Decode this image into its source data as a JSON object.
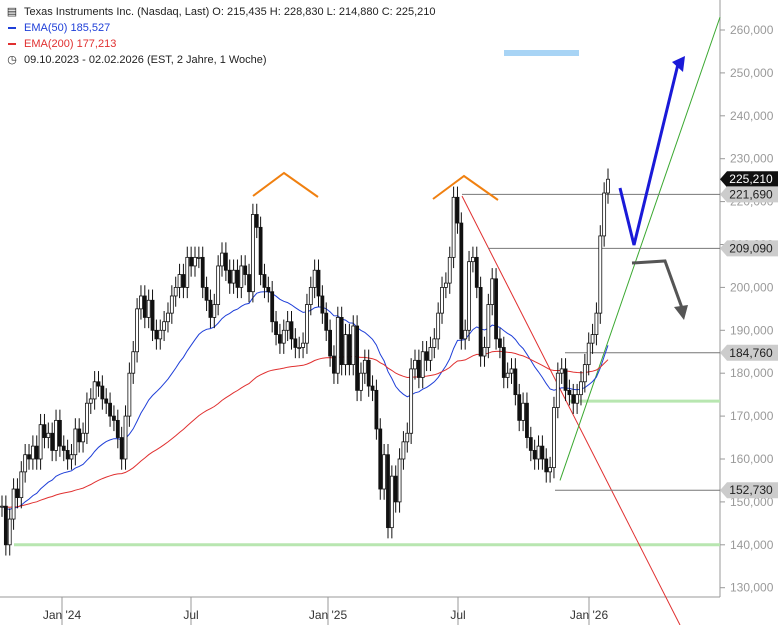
{
  "legend": {
    "main": "Texas Instruments Inc. (Nasdaq, Last)  O: 215,435  H: 228,830  L: 214,880  C: 225,210",
    "ema50": "EMA(50)  185,527",
    "ema200": "EMA(200)  177,213",
    "range": "09.10.2023 - 02.02.2026    (EST, 2 Jahre, 1 Woche)"
  },
  "colors": {
    "ema50": "#1f3fd8",
    "ema200": "#e03030",
    "candle": "#111111",
    "pattern": "#f08010",
    "arrow_up": "#1a1ad8",
    "arrow_down": "#555555",
    "support": "#b8e6b0",
    "target": "#a8d4f5",
    "trend_up": "#3aa830",
    "trend_down": "#e03030"
  },
  "chart_data": {
    "type": "candlestick",
    "title": "Texas Instruments Inc. (Nasdaq, Last)",
    "x_tick_labels": [
      "Jan '24",
      "Jul",
      "Jan '25",
      "Jul",
      "Jan '26"
    ],
    "y_tick_labels": [
      "130,000",
      "140,000",
      "150,000",
      "160,000",
      "170,000",
      "180,000",
      "190,000",
      "200,000",
      "210,000",
      "220,000",
      "230,000",
      "240,000",
      "250,000",
      "260,000"
    ],
    "ylim": [
      125,
      264
    ],
    "date_range": [
      "2023-10-09",
      "2026-02-02"
    ],
    "last_close": 225.21,
    "price_labels": [
      "225,210",
      "221,690",
      "209,090",
      "184,760",
      "152,730"
    ],
    "horizontal_levels": [
      221.69,
      209.09,
      184.76,
      173.5,
      152.73,
      140.0
    ],
    "ema50_value": 185.527,
    "ema200_value": 177.213,
    "closes": [
      149,
      140,
      146,
      153,
      151,
      157,
      161,
      160,
      163,
      160,
      168,
      165,
      166,
      162,
      169,
      163,
      162,
      160,
      161,
      167,
      164,
      166,
      173,
      174,
      178,
      177,
      174,
      173,
      170,
      169,
      165,
      160,
      170,
      180,
      185,
      195,
      198,
      193,
      197,
      190,
      188,
      190,
      192,
      194,
      198,
      200,
      203,
      200,
      207,
      205,
      207,
      207,
      200,
      197,
      193,
      196,
      205,
      208,
      204,
      201,
      204,
      200,
      205,
      203,
      199,
      217,
      214,
      203,
      200,
      199,
      192,
      189,
      187,
      190,
      192,
      188,
      186,
      186,
      187,
      196,
      200,
      204,
      198,
      194,
      190,
      184,
      180,
      193,
      182,
      189,
      182,
      191,
      176,
      180,
      183,
      177,
      176,
      167,
      153,
      161,
      144,
      156,
      150,
      160,
      164,
      166,
      181,
      183,
      179,
      185,
      183,
      186,
      188,
      194,
      200,
      201,
      207,
      221,
      215,
      188,
      190,
      206,
      207,
      200,
      184,
      186,
      196,
      202,
      188,
      186,
      179,
      180,
      181,
      175,
      169,
      173,
      165,
      162,
      160,
      163,
      160,
      157,
      158,
      172,
      180,
      181,
      176,
      175,
      173,
      175,
      178,
      182,
      187,
      189,
      194,
      212,
      222,
      225.21
    ]
  }
}
